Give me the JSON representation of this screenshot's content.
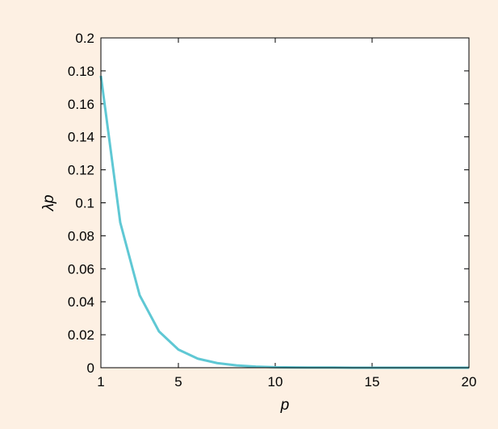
{
  "chart_data": {
    "type": "line",
    "xlabel": "p",
    "ylabel": "λp",
    "xlim": [
      1,
      20
    ],
    "ylim": [
      0,
      0.2
    ],
    "x_ticks": [
      1,
      5,
      10,
      15,
      20
    ],
    "y_ticks": [
      0,
      0.02,
      0.04,
      0.06,
      0.08,
      0.1,
      0.12,
      0.14,
      0.16,
      0.18,
      0.2
    ],
    "grid": false,
    "legend": "none",
    "series": [
      {
        "color": "#5fc8d4",
        "x": [
          1,
          2,
          3,
          4,
          5,
          6,
          7,
          8,
          9,
          10,
          11,
          12,
          13,
          14,
          15,
          16,
          17,
          18,
          19,
          20
        ],
        "values": [
          0.177,
          0.088,
          0.044,
          0.022,
          0.011,
          0.0055,
          0.0028,
          0.0014,
          0.0007,
          0.0003,
          0.0002,
          0.0001,
          0.0001,
          0,
          0,
          0,
          0,
          0,
          0,
          0
        ]
      }
    ]
  },
  "colors": {
    "background": "#fdf0e3",
    "plot_area": "#ffffff",
    "axis": "#000000"
  }
}
